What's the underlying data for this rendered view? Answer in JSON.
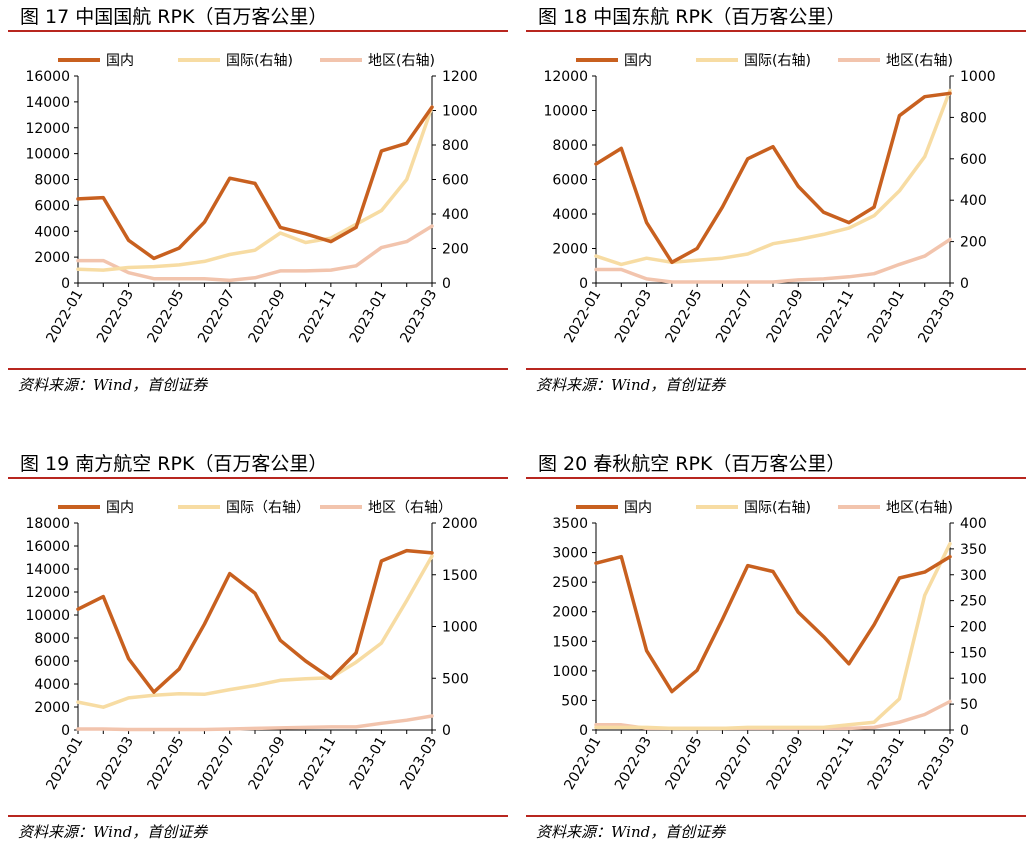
{
  "source_text": "资料来源：Wind，首创证券",
  "colors": {
    "domestic": "#c8601f",
    "international": "#f7dca3",
    "regional": "#f2c4ad",
    "rule": "#b8261f"
  },
  "chart_data": [
    {
      "type": "line",
      "title": "图 17 中国国航 RPK（百万客公里）",
      "x": [
        "2022-01",
        "2022-02",
        "2022-03",
        "2022-04",
        "2022-05",
        "2022-06",
        "2022-07",
        "2022-08",
        "2022-09",
        "2022-10",
        "2022-11",
        "2022-12",
        "2023-01",
        "2023-02",
        "2023-03"
      ],
      "x_tick_labels": [
        "2022-01",
        "2022-03",
        "2022-05",
        "2022-07",
        "2022-09",
        "2022-11",
        "2023-01",
        "2023-03"
      ],
      "ylim_left": [
        0,
        16000
      ],
      "yticks_left": [
        0,
        2000,
        4000,
        6000,
        8000,
        10000,
        12000,
        14000,
        16000
      ],
      "ylim_right": [
        0,
        1200
      ],
      "yticks_right": [
        0,
        200,
        400,
        600,
        800,
        1000,
        1200
      ],
      "grid": false,
      "legend": "top",
      "series": [
        {
          "name": "国内",
          "axis": "left",
          "values": [
            6500,
            6600,
            3300,
            1900,
            2700,
            4700,
            8100,
            7700,
            4300,
            3800,
            3200,
            4300,
            10200,
            10800,
            13600
          ]
        },
        {
          "name": "国际(右轴)",
          "axis": "right",
          "values": [
            80,
            75,
            90,
            95,
            105,
            125,
            165,
            190,
            290,
            235,
            260,
            340,
            420,
            600,
            1020
          ]
        },
        {
          "name": "地区(右轴)",
          "axis": "right",
          "values": [
            130,
            130,
            60,
            25,
            25,
            25,
            15,
            30,
            70,
            70,
            75,
            100,
            205,
            240,
            330
          ]
        }
      ]
    },
    {
      "type": "line",
      "title": "图 18 中国东航 RPK（百万客公里）",
      "x": [
        "2022-01",
        "2022-02",
        "2022-03",
        "2022-04",
        "2022-05",
        "2022-06",
        "2022-07",
        "2022-08",
        "2022-09",
        "2022-10",
        "2022-11",
        "2022-12",
        "2023-01",
        "2023-02",
        "2023-03"
      ],
      "x_tick_labels": [
        "2022-01",
        "2022-03",
        "2022-05",
        "2022-07",
        "2022-09",
        "2022-11",
        "2023-01",
        "2023-03"
      ],
      "ylim_left": [
        0,
        12000
      ],
      "yticks_left": [
        0,
        2000,
        4000,
        6000,
        8000,
        10000,
        12000
      ],
      "ylim_right": [
        0,
        1000
      ],
      "yticks_right": [
        0,
        200,
        400,
        600,
        800,
        1000
      ],
      "grid": false,
      "legend": "top",
      "series": [
        {
          "name": "国内",
          "axis": "left",
          "values": [
            6900,
            7800,
            3500,
            1200,
            2000,
            4400,
            7200,
            7900,
            5600,
            4100,
            3500,
            4400,
            9700,
            10800,
            11000
          ]
        },
        {
          "name": "国际(右轴)",
          "axis": "right",
          "values": [
            130,
            90,
            120,
            100,
            110,
            120,
            140,
            190,
            210,
            235,
            265,
            325,
            445,
            610,
            930
          ]
        },
        {
          "name": "地区(右轴)",
          "axis": "right",
          "values": [
            65,
            65,
            20,
            5,
            5,
            5,
            5,
            5,
            15,
            20,
            30,
            45,
            90,
            130,
            210
          ]
        }
      ]
    },
    {
      "type": "line",
      "title": "图 19 南方航空 RPK（百万客公里）",
      "x": [
        "2022-01",
        "2022-02",
        "2022-03",
        "2022-04",
        "2022-05",
        "2022-06",
        "2022-07",
        "2022-08",
        "2022-09",
        "2022-10",
        "2022-11",
        "2022-12",
        "2023-01",
        "2023-02",
        "2023-03"
      ],
      "x_tick_labels": [
        "2022-01",
        "2022-03",
        "2022-05",
        "2022-07",
        "2022-09",
        "2022-11",
        "2023-01",
        "2023-03"
      ],
      "ylim_left": [
        0,
        18000
      ],
      "yticks_left": [
        0,
        2000,
        4000,
        6000,
        8000,
        10000,
        12000,
        14000,
        16000,
        18000
      ],
      "ylim_right": [
        0,
        2000
      ],
      "yticks_right": [
        0,
        500,
        1000,
        1500,
        2000
      ],
      "grid": false,
      "legend": "top",
      "series": [
        {
          "name": "国内",
          "axis": "left",
          "values": [
            10500,
            11600,
            6200,
            3300,
            5300,
            9200,
            13600,
            11900,
            7800,
            6000,
            4500,
            6700,
            14700,
            15600,
            15400
          ]
        },
        {
          "name": "国际（右轴）",
          "axis": "right",
          "values": [
            270,
            220,
            310,
            335,
            350,
            345,
            390,
            430,
            480,
            495,
            505,
            655,
            840,
            1250,
            1680
          ]
        },
        {
          "name": "地区（右轴）",
          "axis": "right",
          "values": [
            10,
            10,
            5,
            5,
            5,
            5,
            10,
            15,
            20,
            25,
            30,
            30,
            65,
            95,
            135
          ]
        }
      ]
    },
    {
      "type": "line",
      "title": "图 20 春秋航空 RPK（百万客公里）",
      "x": [
        "2022-01",
        "2022-02",
        "2022-03",
        "2022-04",
        "2022-05",
        "2022-06",
        "2022-07",
        "2022-08",
        "2022-09",
        "2022-10",
        "2022-11",
        "2022-12",
        "2023-01",
        "2023-02",
        "2023-03"
      ],
      "x_tick_labels": [
        "2022-01",
        "2022-03",
        "2022-05",
        "2022-07",
        "2022-09",
        "2022-11",
        "2023-01",
        "2023-03"
      ],
      "ylim_left": [
        0,
        3500
      ],
      "yticks_left": [
        0,
        500,
        1000,
        1500,
        2000,
        2500,
        3000,
        3500
      ],
      "ylim_right": [
        0,
        400
      ],
      "yticks_right": [
        0,
        50,
        100,
        150,
        200,
        250,
        300,
        350,
        400
      ],
      "grid": false,
      "legend": "top",
      "series": [
        {
          "name": "国内",
          "axis": "left",
          "values": [
            2820,
            2930,
            1340,
            650,
            1010,
            1870,
            2780,
            2680,
            1990,
            1580,
            1120,
            1780,
            2570,
            2670,
            2930
          ]
        },
        {
          "name": "国际(右轴)",
          "axis": "right",
          "values": [
            5,
            5,
            5,
            3,
            3,
            3,
            5,
            5,
            5,
            5,
            10,
            15,
            60,
            260,
            360
          ]
        },
        {
          "name": "地区(右轴)",
          "axis": "right",
          "values": [
            10,
            10,
            3,
            3,
            3,
            3,
            3,
            3,
            3,
            3,
            3,
            5,
            15,
            30,
            55
          ]
        }
      ]
    }
  ]
}
